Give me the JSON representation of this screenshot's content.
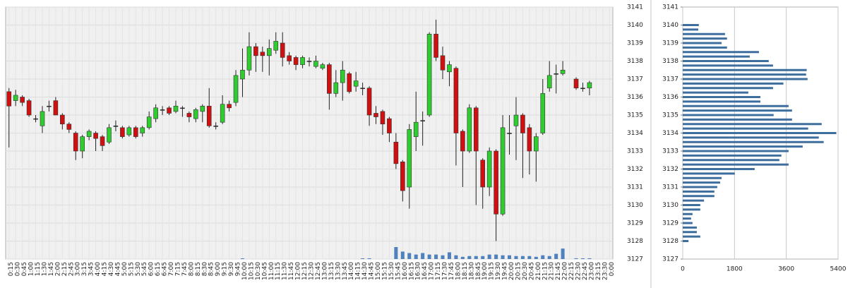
{
  "chart_data": [
    {
      "type": "candlestick",
      "categories": [
        "0:15",
        "0:30",
        "0:45",
        "1:00",
        "1:15",
        "1:30",
        "1:45",
        "2:00",
        "2:15",
        "2:45",
        "3:00",
        "3:15",
        "3:45",
        "4:00",
        "4:15",
        "4:30",
        "4:45",
        "5:00",
        "5:15",
        "5:30",
        "5:45",
        "6:00",
        "6:15",
        "6:45",
        "7:00",
        "7:15",
        "7:45",
        "8:00",
        "8:15",
        "8:30",
        "8:45",
        "9:00",
        "9:15",
        "9:30",
        "9:45",
        "10:00",
        "10:15",
        "10:30",
        "10:45",
        "11:00",
        "11:15",
        "11:30",
        "11:45",
        "12:00",
        "12:15",
        "12:30",
        "12:45",
        "13:00",
        "13:15",
        "13:30",
        "13:45",
        "14:00",
        "14:15",
        "14:30",
        "14:45",
        "15:00",
        "15:15",
        "15:30",
        "15:45",
        "16:00",
        "16:15",
        "16:30",
        "16:45",
        "17:00",
        "17:15",
        "17:30",
        "17:45",
        "18:00",
        "18:15",
        "18:30",
        "18:45",
        "19:00",
        "19:15",
        "19:30",
        "19:45",
        "20:00",
        "20:15",
        "20:30",
        "20:45",
        "21:00",
        "21:15",
        "21:30",
        "21:45",
        "22:00",
        "22:15",
        "22:30",
        "22:45",
        "23:00",
        "23:15",
        "23:30",
        "0:00"
      ],
      "candles": [
        {
          "open": 3136.3,
          "high": 3136.5,
          "low": 3133.2,
          "close": 3135.5
        },
        {
          "open": 3135.8,
          "high": 3136.4,
          "low": 3135.5,
          "close": 3136.1
        },
        {
          "open": 3136,
          "high": 3136.1,
          "low": 3135.5,
          "close": 3135.7
        },
        {
          "open": 3135.8,
          "high": 3135.9,
          "low": 3134.9,
          "close": 3135
        },
        {
          "open": 3134.8,
          "high": 3135,
          "low": 3134.6,
          "close": 3134.8
        },
        {
          "open": 3134.4,
          "high": 3135.5,
          "low": 3134,
          "close": 3135.2
        },
        {
          "open": 3135.5,
          "high": 3135.8,
          "low": 3135.2,
          "close": 3135.5
        },
        {
          "open": 3135.8,
          "high": 3136,
          "low": 3135,
          "close": 3135
        },
        {
          "open": 3135,
          "high": 3135.1,
          "low": 3134.2,
          "close": 3134.5
        },
        {
          "open": 3134.5,
          "high": 3134.6,
          "low": 3134,
          "close": 3134.2
        },
        {
          "open": 3134,
          "high": 3134.1,
          "low": 3132.5,
          "close": 3133
        },
        {
          "open": 3133,
          "high": 3133.9,
          "low": 3132.6,
          "close": 3133.8
        },
        {
          "open": 3133.8,
          "high": 3134.2,
          "low": 3133.6,
          "close": 3134.1
        },
        {
          "open": 3134,
          "high": 3134.1,
          "low": 3133,
          "close": 3133.7
        },
        {
          "open": 3133.8,
          "high": 3133.9,
          "low": 3133,
          "close": 3133.3
        },
        {
          "open": 3133.5,
          "high": 3134.5,
          "low": 3133.4,
          "close": 3134.3
        },
        {
          "open": 3134.4,
          "high": 3134.7,
          "low": 3134.1,
          "close": 3134.4
        },
        {
          "open": 3134.3,
          "high": 3134.4,
          "low": 3133.7,
          "close": 3133.8
        },
        {
          "open": 3133.9,
          "high": 3134.4,
          "low": 3133.8,
          "close": 3134.3
        },
        {
          "open": 3134.3,
          "high": 3134.4,
          "low": 3133.7,
          "close": 3133.8
        },
        {
          "open": 3134,
          "high": 3134.4,
          "low": 3133.8,
          "close": 3134.3
        },
        {
          "open": 3134.3,
          "high": 3135.2,
          "low": 3134.2,
          "close": 3134.9
        },
        {
          "open": 3134.8,
          "high": 3135.6,
          "low": 3134.6,
          "close": 3135.4
        },
        {
          "open": 3135.3,
          "high": 3135.5,
          "low": 3135,
          "close": 3135.3
        },
        {
          "open": 3135.4,
          "high": 3135.5,
          "low": 3135,
          "close": 3135.1
        },
        {
          "open": 3135.2,
          "high": 3135.8,
          "low": 3135.1,
          "close": 3135.5
        },
        {
          "open": 3135.4,
          "high": 3135.5,
          "low": 3134.9,
          "close": 3135.4
        },
        {
          "open": 3135.1,
          "high": 3135.2,
          "low": 3134.6,
          "close": 3134.9
        },
        {
          "open": 3134.8,
          "high": 3135.4,
          "low": 3134.6,
          "close": 3135.3
        },
        {
          "open": 3135.2,
          "high": 3135.6,
          "low": 3134.6,
          "close": 3135.5
        },
        {
          "open": 3135.5,
          "high": 3136.5,
          "low": 3134.3,
          "close": 3134.4
        },
        {
          "open": 3134.4,
          "high": 3134.6,
          "low": 3134.2,
          "close": 3134.4
        },
        {
          "open": 3134.6,
          "high": 3136.1,
          "low": 3134.5,
          "close": 3135.6
        },
        {
          "open": 3135.6,
          "high": 3135.8,
          "low": 3135.2,
          "close": 3135.4
        },
        {
          "open": 3135.7,
          "high": 3137.5,
          "low": 3135.5,
          "close": 3137.2
        },
        {
          "open": 3137,
          "high": 3138.7,
          "low": 3136,
          "close": 3137.5
        },
        {
          "open": 3137.5,
          "high": 3139.6,
          "low": 3137.2,
          "close": 3138.8
        },
        {
          "open": 3138.8,
          "high": 3139,
          "low": 3137.4,
          "close": 3138.3
        },
        {
          "open": 3138.5,
          "high": 3138.8,
          "low": 3137.4,
          "close": 3138.3
        },
        {
          "open": 3138.3,
          "high": 3139.2,
          "low": 3137.2,
          "close": 3138.7
        },
        {
          "open": 3138.6,
          "high": 3139.6,
          "low": 3138.4,
          "close": 3139.1
        },
        {
          "open": 3139,
          "high": 3139.6,
          "low": 3137.7,
          "close": 3138.2
        },
        {
          "open": 3138.3,
          "high": 3138.5,
          "low": 3137.8,
          "close": 3138
        },
        {
          "open": 3138.2,
          "high": 3138.3,
          "low": 3137.5,
          "close": 3137.8
        },
        {
          "open": 3137.8,
          "high": 3138.3,
          "low": 3137.6,
          "close": 3138.2
        },
        {
          "open": 3138,
          "high": 3138.2,
          "low": 3137.7,
          "close": 3138
        },
        {
          "open": 3137.7,
          "high": 3138.3,
          "low": 3137.6,
          "close": 3138
        },
        {
          "open": 3137.6,
          "high": 3137.9,
          "low": 3137.5,
          "close": 3137.8
        },
        {
          "open": 3137.8,
          "high": 3137.9,
          "low": 3135.3,
          "close": 3136.2
        },
        {
          "open": 3136.2,
          "high": 3137.5,
          "low": 3136,
          "close": 3136.8
        },
        {
          "open": 3136.8,
          "high": 3138,
          "low": 3135.8,
          "close": 3137.5
        },
        {
          "open": 3137.3,
          "high": 3137.4,
          "low": 3136.2,
          "close": 3136.3
        },
        {
          "open": 3136.6,
          "high": 3137.4,
          "low": 3136.3,
          "close": 3136.9
        },
        {
          "open": 3136.5,
          "high": 3136.8,
          "low": 3136.1,
          "close": 3136.5
        },
        {
          "open": 3136.5,
          "high": 3136.6,
          "low": 3134.4,
          "close": 3135
        },
        {
          "open": 3135.1,
          "high": 3135.5,
          "low": 3134.5,
          "close": 3134.9
        },
        {
          "open": 3135.2,
          "high": 3135.3,
          "low": 3133.9,
          "close": 3134.5
        },
        {
          "open": 3134.8,
          "high": 3134.9,
          "low": 3133.5,
          "close": 3134
        },
        {
          "open": 3133.5,
          "high": 3134,
          "low": 3132,
          "close": 3132.3
        },
        {
          "open": 3132.4,
          "high": 3132.5,
          "low": 3130.2,
          "close": 3130.8
        },
        {
          "open": 3131,
          "high": 3134.5,
          "low": 3129.8,
          "close": 3134.2
        },
        {
          "open": 3133.8,
          "high": 3136.3,
          "low": 3133,
          "close": 3134.6
        },
        {
          "open": 3134.7,
          "high": 3135.2,
          "low": 3133.3,
          "close": 3134.7
        },
        {
          "open": 3135,
          "high": 3139.6,
          "low": 3134.9,
          "close": 3139.5
        },
        {
          "open": 3139.5,
          "high": 3140.3,
          "low": 3138,
          "close": 3138.2
        },
        {
          "open": 3138.3,
          "high": 3138.8,
          "low": 3137,
          "close": 3137.5
        },
        {
          "open": 3137.4,
          "high": 3138,
          "low": 3136.6,
          "close": 3137.8
        },
        {
          "open": 3137.6,
          "high": 3137.7,
          "low": 3132.2,
          "close": 3134
        },
        {
          "open": 3134.1,
          "high": 3134.2,
          "low": 3131,
          "close": 3133
        },
        {
          "open": 3133,
          "high": 3135.6,
          "low": 3132.9,
          "close": 3135.4
        },
        {
          "open": 3135.4,
          "high": 3135.5,
          "low": 3130,
          "close": 3133
        },
        {
          "open": 3132.5,
          "high": 3132.6,
          "low": 3129.8,
          "close": 3131
        },
        {
          "open": 3131,
          "high": 3133.2,
          "low": 3130.5,
          "close": 3133
        },
        {
          "open": 3133,
          "high": 3133.1,
          "low": 3128,
          "close": 3129.5
        },
        {
          "open": 3129.5,
          "high": 3135,
          "low": 3129.4,
          "close": 3134.3
        },
        {
          "open": 3134,
          "high": 3135,
          "low": 3132.8,
          "close": 3134
        },
        {
          "open": 3134.4,
          "high": 3136,
          "low": 3132.5,
          "close": 3135
        },
        {
          "open": 3135,
          "high": 3135.1,
          "low": 3131.5,
          "close": 3134
        },
        {
          "open": 3134.3,
          "high": 3134.5,
          "low": 3131.7,
          "close": 3133
        },
        {
          "open": 3133,
          "high": 3134,
          "low": 3131.3,
          "close": 3133.8
        },
        {
          "open": 3134,
          "high": 3137,
          "low": 3133.9,
          "close": 3136.2
        },
        {
          "open": 3136.5,
          "high": 3138,
          "low": 3136.3,
          "close": 3137.2
        },
        {
          "open": 3137.3,
          "high": 3137.8,
          "low": 3136.2,
          "close": 3137.3
        },
        {
          "open": 3137.3,
          "high": 3138,
          "low": 3137.2,
          "close": 3137.5
        },
        null,
        {
          "open": 3137,
          "high": 3137.1,
          "low": 3136.4,
          "close": 3136.5
        },
        {
          "open": 3136.5,
          "high": 3136.8,
          "low": 3136.3,
          "close": 3136.5
        },
        {
          "open": 3136.5,
          "high": 3136.9,
          "low": 3136.1,
          "close": 3136.8
        },
        null,
        null,
        null
      ],
      "volume": [
        0,
        0,
        0,
        0,
        0,
        0,
        0,
        0,
        0,
        0,
        0,
        0,
        0,
        0,
        0,
        0,
        0,
        0,
        0,
        0,
        0,
        0,
        0,
        0,
        0,
        0,
        0,
        0,
        0,
        0,
        0,
        0,
        0,
        0,
        0,
        1,
        0,
        0,
        0,
        0,
        0,
        0,
        0,
        0,
        0,
        0,
        0,
        0,
        0,
        0,
        0,
        0,
        0,
        1,
        1,
        0,
        0,
        0,
        16,
        10,
        8,
        6,
        8,
        6,
        6,
        5,
        9,
        5,
        3,
        4,
        4,
        4,
        6,
        6,
        5,
        5,
        4,
        4,
        4,
        3,
        5,
        4,
        7,
        14,
        0,
        1,
        1,
        1,
        0,
        0,
        0
      ],
      "up_color": "#2ecc2e",
      "down_color": "#d01010",
      "volume_color": "#4f81bd",
      "ylim": [
        3127,
        3141
      ],
      "yticks": [
        3127,
        3128,
        3129,
        3130,
        3131,
        3132,
        3133,
        3134,
        3135,
        3136,
        3137,
        3138,
        3139,
        3140,
        3141
      ],
      "grid": true
    },
    {
      "type": "hbar",
      "categories": [
        3140,
        3139.75,
        3139.5,
        3139.25,
        3139,
        3138.75,
        3138.5,
        3138.25,
        3138,
        3137.75,
        3137.5,
        3137.25,
        3137,
        3136.75,
        3136.5,
        3136.25,
        3136,
        3135.75,
        3135.5,
        3135.25,
        3135,
        3134.75,
        3134.5,
        3134.25,
        3134,
        3133.75,
        3133.5,
        3133.25,
        3133,
        3132.75,
        3132.5,
        3132.25,
        3132,
        3131.75,
        3131.5,
        3131.25,
        3131,
        3130.75,
        3130.5,
        3130.25,
        3130,
        3129.75,
        3129.5,
        3129.25,
        3129,
        3128.75,
        3128.5,
        3128.25,
        3128
      ],
      "values": [
        560,
        540,
        1470,
        1540,
        1350,
        1540,
        2650,
        2330,
        2990,
        3140,
        4310,
        4290,
        4340,
        3500,
        3140,
        2280,
        2700,
        2700,
        3680,
        3800,
        3160,
        3800,
        4830,
        4360,
        5340,
        4730,
        4900,
        4170,
        3680,
        3430,
        3360,
        3680,
        2500,
        1810,
        1350,
        1300,
        1200,
        1100,
        1100,
        740,
        610,
        610,
        340,
        290,
        340,
        490,
        490,
        610,
        200
      ],
      "color": "#3d6e9e",
      "xlim": [
        0,
        5400
      ],
      "xticks": [
        0,
        1800,
        3600,
        5400
      ],
      "ylim": [
        3127,
        3141
      ],
      "yticks": [
        3127,
        3128,
        3129,
        3130,
        3131,
        3132,
        3133,
        3134,
        3135,
        3136,
        3137,
        3138,
        3139,
        3140,
        3141
      ],
      "grid": true
    }
  ]
}
